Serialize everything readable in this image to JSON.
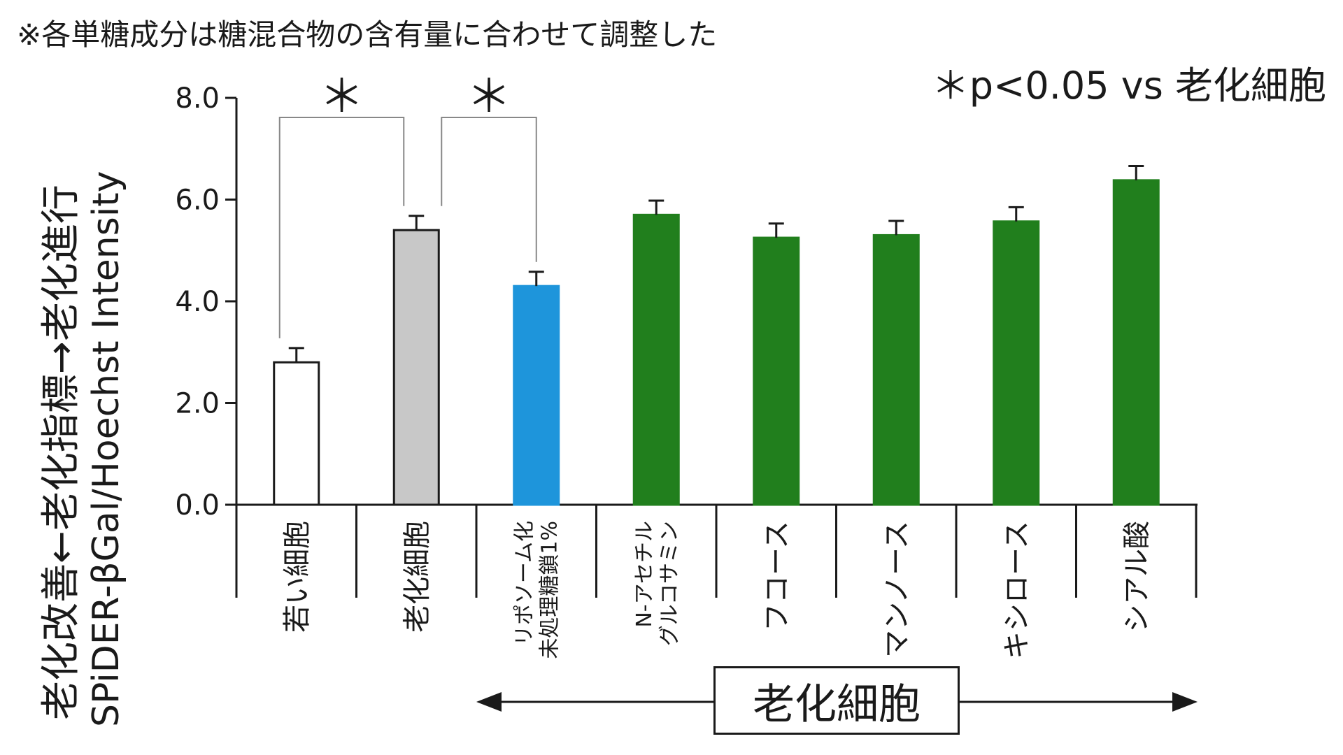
{
  "note": "※各単糖成分は糖混合物の含有量に合わせて調整した",
  "significance": "＊p<0.05 vs 老化細胞",
  "ylabel_line1": "老化改善←老化指標→老化進行",
  "ylabel_line2": "SPiDER-βGal/Hoechst Intensity",
  "group_label": "老化細胞",
  "colors": {
    "white": "#ffffff",
    "gray": "#c8c8c8",
    "blue": "#1e95db",
    "green": "#217f1d",
    "axis": "#1a1a1a"
  },
  "chart_data": {
    "type": "bar",
    "title": "",
    "xlabel": "",
    "ylabel": "SPiDER-βGal/Hoechst Intensity",
    "ylim": [
      0,
      8
    ],
    "yticks": [
      "0.0",
      "2.0",
      "4.0",
      "6.0",
      "8.0"
    ],
    "categories": [
      [
        "若い細胞"
      ],
      [
        "老化細胞"
      ],
      [
        "リポソーム化",
        "未処理糖鎖1%"
      ],
      [
        "N-アセチル",
        "グルコサミン"
      ],
      [
        "フコース"
      ],
      [
        "マンノース"
      ],
      [
        "キシロース"
      ],
      [
        "シアル酸"
      ]
    ],
    "values": [
      2.8,
      5.4,
      4.3,
      5.7,
      5.25,
      5.3,
      5.57,
      6.38
    ],
    "errors": [
      0.28,
      0.28,
      0.28,
      0.28,
      0.28,
      0.28,
      0.28,
      0.28
    ],
    "bar_colors": [
      "white",
      "gray",
      "blue",
      "green",
      "green",
      "green",
      "green",
      "green"
    ],
    "significance_marks": [
      {
        "from": 0,
        "to": 1,
        "label": "＊"
      },
      {
        "from": 1,
        "to": 2,
        "label": "＊"
      }
    ]
  }
}
